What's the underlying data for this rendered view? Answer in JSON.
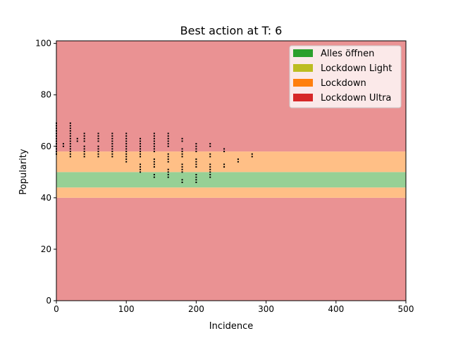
{
  "chart_data": {
    "type": "heatmap",
    "title": "Best action at T: 6",
    "xlabel": "Incidence",
    "ylabel": "Popularity",
    "xlim": [
      0,
      500
    ],
    "ylim": [
      0,
      100
    ],
    "x_ticks": [
      0,
      100,
      200,
      300,
      400,
      500
    ],
    "y_ticks": [
      0,
      20,
      40,
      60,
      80,
      100
    ],
    "grid": false,
    "legend_position": "top-right",
    "legend": [
      {
        "label": "Alles öffnen",
        "color": "#2ca02c"
      },
      {
        "label": "Lockdown Light",
        "color": "#bcbd22"
      },
      {
        "label": "Lockdown",
        "color": "#ff7f0e"
      },
      {
        "label": "Lockdown Ultra",
        "color": "#d62728"
      }
    ],
    "regions": [
      {
        "action": "Lockdown Ultra",
        "y_from": 0,
        "y_to": 40,
        "color": "#ea9293"
      },
      {
        "action": "Lockdown",
        "y_from": 40,
        "y_to": 44,
        "color": "#ffbf86"
      },
      {
        "action": "Alles öffnen",
        "y_from": 44,
        "y_to": 50,
        "color": "#96d095"
      },
      {
        "action": "Lockdown",
        "y_from": 50,
        "y_to": 58,
        "color": "#ffbf86"
      },
      {
        "action": "Lockdown Ultra",
        "y_from": 58,
        "y_to": 101,
        "color": "#ea9293"
      }
    ],
    "points": [
      {
        "x": 0,
        "y": [
          57,
          58,
          59,
          60,
          61,
          62,
          63,
          64,
          65,
          66,
          67,
          68,
          69
        ]
      },
      {
        "x": 10,
        "y": [
          60,
          61
        ]
      },
      {
        "x": 20,
        "y": [
          56,
          57,
          58,
          59,
          60,
          61,
          62,
          63,
          64,
          65,
          66,
          67,
          68,
          69
        ]
      },
      {
        "x": 30,
        "y": [
          62,
          63
        ]
      },
      {
        "x": 40,
        "y": [
          56,
          57,
          58,
          59,
          60,
          62,
          63,
          64,
          65
        ]
      },
      {
        "x": 60,
        "y": [
          56,
          57,
          58,
          59,
          60,
          62,
          63,
          64,
          65
        ]
      },
      {
        "x": 80,
        "y": [
          56,
          57,
          58,
          59,
          60,
          61,
          62,
          63,
          64,
          65
        ]
      },
      {
        "x": 100,
        "y": [
          54,
          55,
          56,
          57,
          58,
          59,
          60,
          61,
          62,
          63,
          64,
          65
        ]
      },
      {
        "x": 120,
        "y": [
          50,
          51,
          52,
          53,
          56,
          57,
          58,
          59,
          60,
          61,
          62,
          63
        ]
      },
      {
        "x": 140,
        "y": [
          48,
          49,
          52,
          53,
          54,
          55,
          58,
          59,
          60,
          61,
          62,
          63,
          64,
          65
        ]
      },
      {
        "x": 160,
        "y": [
          48,
          49,
          50,
          51,
          54,
          55,
          56,
          57,
          60,
          61,
          62,
          63,
          64,
          65
        ]
      },
      {
        "x": 180,
        "y": [
          46,
          47,
          50,
          51,
          52,
          53,
          56,
          57,
          58,
          59,
          62,
          63
        ]
      },
      {
        "x": 200,
        "y": [
          46,
          47,
          48,
          49,
          52,
          53,
          54,
          55,
          58,
          59,
          60,
          61
        ]
      },
      {
        "x": 220,
        "y": [
          48,
          49,
          50,
          51,
          52,
          53,
          56,
          57,
          60,
          61
        ]
      },
      {
        "x": 240,
        "y": [
          52,
          53,
          58,
          59
        ]
      },
      {
        "x": 260,
        "y": [
          54,
          55
        ]
      },
      {
        "x": 280,
        "y": [
          56,
          57
        ]
      }
    ]
  }
}
